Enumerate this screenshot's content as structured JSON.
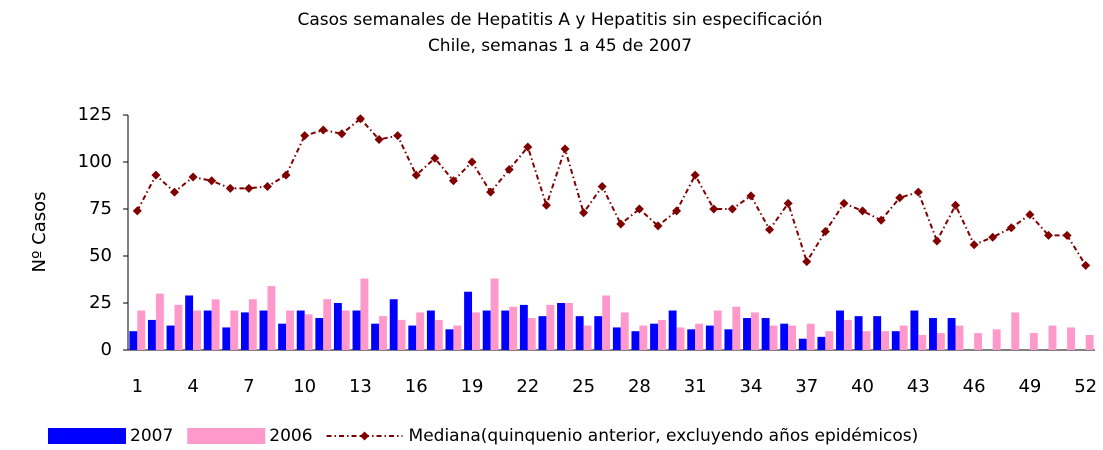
{
  "chart_data": {
    "type": "bar_line",
    "title": "Casos semanales de Hepatitis A y Hepatitis sin especificación",
    "subtitle": "Chile, semanas 1 a 45 de 2007",
    "y_label": "Nº Casos",
    "categories": [
      "1",
      null,
      null,
      "4",
      null,
      null,
      "7",
      null,
      null,
      "10",
      null,
      null,
      "13",
      null,
      null,
      "16",
      null,
      null,
      "19",
      null,
      null,
      "22",
      null,
      null,
      "25",
      null,
      null,
      "28",
      null,
      null,
      "31",
      null,
      null,
      "34",
      null,
      null,
      "37",
      null,
      null,
      "40",
      null,
      null,
      "43",
      null,
      null,
      "46",
      null,
      null,
      "49",
      null,
      null,
      "52"
    ],
    "series": [
      {
        "name": "2007",
        "type": "bar",
        "color": "#0000ff",
        "values": [
          10,
          16,
          13,
          29,
          21,
          12,
          20,
          21,
          14,
          21,
          17,
          25,
          21,
          14,
          27,
          13,
          21,
          11,
          31,
          21,
          21,
          24,
          18,
          25,
          18,
          18,
          12,
          10,
          14,
          21,
          11,
          13,
          11,
          17,
          17,
          14,
          6,
          7,
          21,
          18,
          18,
          10,
          21,
          17,
          17,
          null,
          null,
          null,
          null,
          null,
          null,
          null
        ]
      },
      {
        "name": "2006",
        "type": "bar",
        "color": "#ff99cc",
        "values": [
          21,
          30,
          24,
          21,
          27,
          21,
          27,
          34,
          21,
          19,
          27,
          21,
          38,
          18,
          16,
          20,
          16,
          13,
          20,
          38,
          23,
          17,
          24,
          25,
          13,
          29,
          20,
          13,
          16,
          12,
          14,
          21,
          23,
          20,
          13,
          13,
          14,
          10,
          16,
          10,
          10,
          13,
          8,
          9,
          13,
          9,
          11,
          20,
          9,
          13,
          12,
          8
        ]
      },
      {
        "name": "Mediana(quinquenio anterior, excluyendo años epidémicos)",
        "type": "line",
        "color": "#800000",
        "values": [
          74,
          93,
          84,
          92,
          90,
          86,
          86,
          87,
          93,
          114,
          117,
          115,
          123,
          112,
          114,
          93,
          102,
          90,
          100,
          84,
          96,
          108,
          77,
          107,
          73,
          87,
          67,
          75,
          66,
          74,
          93,
          75,
          75,
          82,
          64,
          78,
          47,
          63,
          78,
          74,
          69,
          81,
          84,
          58,
          77,
          56,
          60,
          65,
          72,
          61,
          61,
          45
        ]
      }
    ],
    "ylim": [
      0,
      125
    ],
    "yticks": [
      0,
      25,
      50,
      75,
      100,
      125
    ],
    "grid": false,
    "legend": "bottom"
  }
}
